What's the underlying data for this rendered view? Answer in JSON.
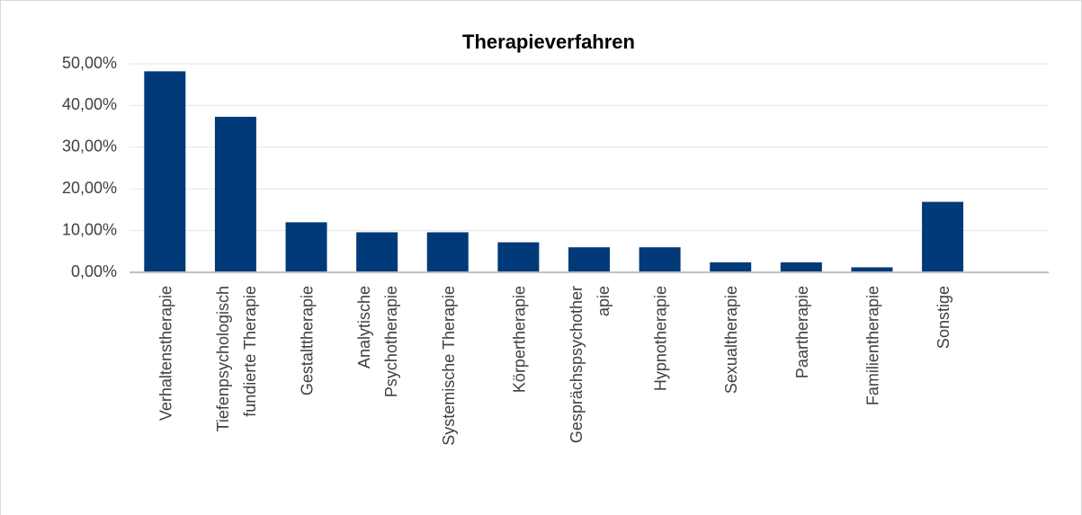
{
  "chart_data": {
    "type": "bar",
    "title": "Therapieverfahren",
    "categories": [
      "Verhaltenstherapie",
      "Tiefenpsychologisch\nfundierte Therapie",
      "Gestalttherapie",
      "Analytische\nPsychotherapie",
      "Systemische Therapie",
      "Körpertherapie",
      "Gesprächspsychother\napie",
      "Hypnotherapie",
      "Sexualtherapie",
      "Paartherapie",
      "Familientherapie",
      "Sonstige",
      null
    ],
    "values": [
      48.2,
      37.3,
      12.0,
      9.6,
      9.6,
      7.2,
      6.0,
      6.0,
      2.4,
      2.4,
      1.2,
      16.9,
      null
    ],
    "color": "#003a78",
    "ylim": [
      0,
      50
    ],
    "yticks": [
      {
        "value": 0,
        "label": "0,00%"
      },
      {
        "value": 10,
        "label": "10,00%"
      },
      {
        "value": 20,
        "label": "20,00%"
      },
      {
        "value": 30,
        "label": "30,00%"
      },
      {
        "value": 40,
        "label": "40,00%"
      },
      {
        "value": 50,
        "label": "50,00%"
      }
    ],
    "grid": true
  }
}
